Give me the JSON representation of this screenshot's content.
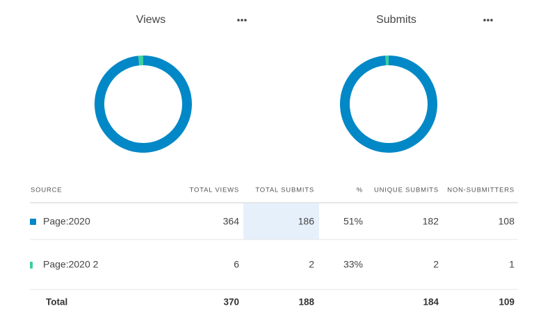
{
  "chart_data": [
    {
      "type": "pie",
      "title": "Views",
      "values": [
        364,
        6
      ],
      "colors": [
        "#0288c7",
        "#3ccf9f"
      ]
    },
    {
      "type": "pie",
      "title": "Submits",
      "values": [
        186,
        2
      ],
      "colors": [
        "#0288c7",
        "#3ccf9f"
      ]
    }
  ],
  "table": {
    "headers": [
      "SOURCE",
      "TOTAL VIEWS",
      "TOTAL SUBMITS",
      "%",
      "UNIQUE SUBMITS",
      "NON-SUBMITTERS"
    ],
    "rows": [
      [
        "Page:2020",
        364,
        186,
        "51%",
        182,
        108
      ],
      [
        "Page:2020 2",
        6,
        2,
        "33%",
        2,
        1
      ]
    ],
    "total": [
      "Total",
      370,
      188,
      null,
      184,
      109
    ]
  }
}
